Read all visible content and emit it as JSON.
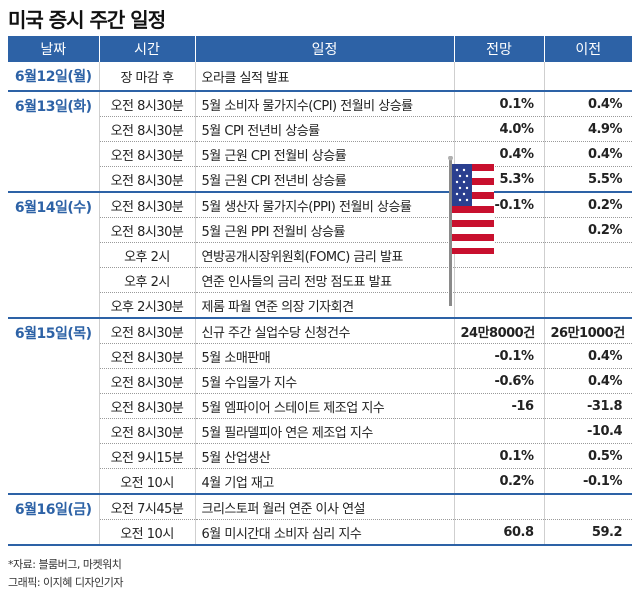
{
  "title": "미국 증시 주간 일정",
  "columns": [
    "날짜",
    "시간",
    "일정",
    "전망",
    "이전"
  ],
  "groups": [
    {
      "date": "6월12일(월)",
      "rows": [
        {
          "time": "장 마감 후",
          "event": "오라클 실적 발표",
          "forecast": "",
          "previous": ""
        }
      ]
    },
    {
      "date": "6월13일(화)",
      "rows": [
        {
          "time": "오전 8시30분",
          "event": "5월 소비자 물가지수(CPI) 전월비 상승률",
          "forecast": "0.1%",
          "previous": "0.4%"
        },
        {
          "time": "오전 8시30분",
          "event": "5월 CPI 전년비 상승률",
          "forecast": "4.0%",
          "previous": "4.9%"
        },
        {
          "time": "오전 8시30분",
          "event": "5월 근원 CPI 전월비 상승률",
          "forecast": "0.4%",
          "previous": "0.4%"
        },
        {
          "time": "오전 8시30분",
          "event": "5월 근원 CPI 전년비 상승률",
          "forecast": "5.3%",
          "previous": "5.5%"
        }
      ]
    },
    {
      "date": "6월14일(수)",
      "rows": [
        {
          "time": "오전 8시30분",
          "event": "5월 생산자 물가지수(PPI) 전월비 상승률",
          "forecast": "-0.1%",
          "previous": "0.2%"
        },
        {
          "time": "오전 8시30분",
          "event": "5월 근원 PPI 전월비 상승률",
          "forecast": "",
          "previous": "0.2%"
        },
        {
          "time": "오후 2시",
          "event": "연방공개시장위원회(FOMC) 금리 발표",
          "forecast": "",
          "previous": ""
        },
        {
          "time": "오후 2시",
          "event": "연준 인사들의 금리 전망 점도표 발표",
          "forecast": "",
          "previous": ""
        },
        {
          "time": "오후 2시30분",
          "event": "제롬 파월 연준 의장 기자회견",
          "forecast": "",
          "previous": ""
        }
      ]
    },
    {
      "date": "6월15일(목)",
      "rows": [
        {
          "time": "오전 8시30분",
          "event": "신규 주간 실업수당 신청건수",
          "forecast": "24만8000건",
          "previous": "26만1000건"
        },
        {
          "time": "오전 8시30분",
          "event": "5월 소매판매",
          "forecast": "-0.1%",
          "previous": "0.4%"
        },
        {
          "time": "오전 8시30분",
          "event": "5월 수입물가 지수",
          "forecast": "-0.6%",
          "previous": "0.4%"
        },
        {
          "time": "오전 8시30분",
          "event": "5월 엠파이어 스테이트 제조업 지수",
          "forecast": "-16",
          "previous": "-31.8"
        },
        {
          "time": "오전 8시30분",
          "event": "5월 필라델피아 연은 제조업 지수",
          "forecast": "",
          "previous": "-10.4"
        },
        {
          "time": "오전 9시15분",
          "event": "5월 산업생산",
          "forecast": "0.1%",
          "previous": "0.5%"
        },
        {
          "time": "오전 10시",
          "event": "4월 기업 재고",
          "forecast": "0.2%",
          "previous": "-0.1%"
        }
      ]
    },
    {
      "date": "6월16일(금)",
      "rows": [
        {
          "time": "오전 7시45분",
          "event": "크리스토퍼 월러 연준 이사 연설",
          "forecast": "",
          "previous": ""
        },
        {
          "time": "오전 10시",
          "event": "6월 미시간대 소비자 심리 지수",
          "forecast": "60.8",
          "previous": "59.2"
        }
      ]
    }
  ],
  "source_line": "*자료: 블룸버그, 마켓워치",
  "credit_line": "그래픽: 이지혜 디자인기자",
  "decoration": {
    "icon": "us-flag-icon",
    "colors": {
      "header": "#2d62a6",
      "flag_red": "#c8102e",
      "flag_blue": "#2a3f8f"
    }
  }
}
